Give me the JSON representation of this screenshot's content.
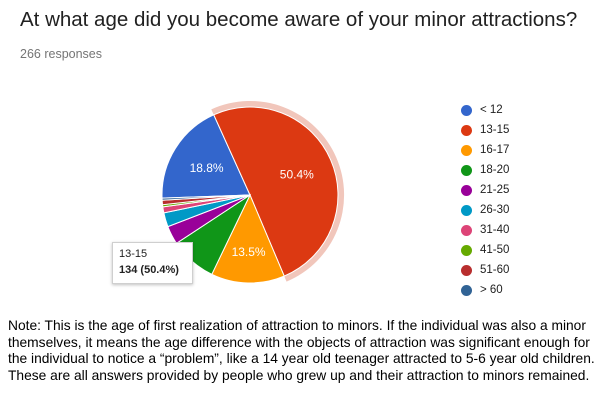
{
  "title": "At what age did you become aware of your minor attractions?",
  "responses": "266 responses",
  "chart_data": {
    "type": "pie",
    "title": "At what age did you become aware of your minor attractions?",
    "categories": [
      "< 12",
      "13-15",
      "16-17",
      "18-20",
      "21-25",
      "26-30",
      "31-40",
      "41-50",
      "51-60",
      "> 60"
    ],
    "values": [
      18.8,
      50.4,
      13.5,
      8.6,
      3.4,
      2.6,
      1.1,
      0.4,
      0.8,
      0.4
    ],
    "colors": [
      "#3366CC",
      "#DC3912",
      "#FF9900",
      "#109618",
      "#990099",
      "#0099C6",
      "#DD4477",
      "#66AA00",
      "#B82E2E",
      "#316395"
    ],
    "slice_labels": [
      "18.8%",
      "50.4%",
      "13.5%",
      "",
      "",
      "",
      "",
      "",
      "",
      ""
    ],
    "highlighted_slice": "13-15",
    "tooltip": {
      "category": "13-15",
      "value": "134 (50.4%)"
    },
    "legend_position": "right"
  },
  "note": "Note: This is the age of first realization of attraction to minors. If the individual was also a minor themselves, it means the age difference with the objects of attraction was significant enough for the individual to notice a “problem”, like a 14 year old teenager attracted to 5-6 year old children. These are all answers provided by people who grew up and their attraction to minors remained."
}
